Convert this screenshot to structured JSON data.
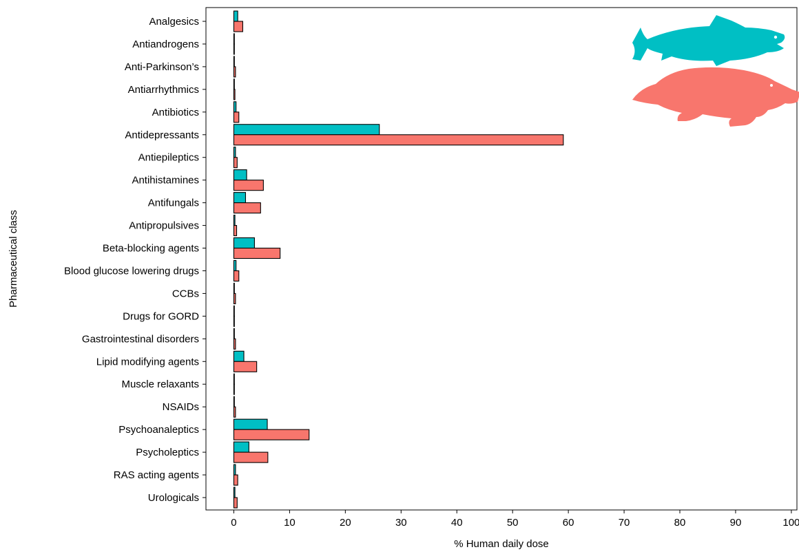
{
  "chart_data": {
    "type": "bar",
    "orientation": "horizontal",
    "xlabel": "% Human daily dose",
    "ylabel": "Pharmaceutical class",
    "xlim": [
      -5,
      101
    ],
    "x_ticks": [
      0,
      10,
      20,
      30,
      40,
      50,
      60,
      70,
      80,
      90,
      100
    ],
    "grid": false,
    "legend": "none (series shown as fish and platypus silhouettes, top-right)",
    "categories": [
      "Analgesics",
      "Antiandrogens",
      "Anti-Parkinson’s",
      "Antiarrhythmics",
      "Antibiotics",
      "Antidepressants",
      "Antiepileptics",
      "Antihistamines",
      "Antifungals",
      "Antipropulsives",
      "Beta-blocking agents",
      "Blood glucose lowering drugs",
      "CCBs",
      "Drugs for GORD",
      "Gastrointestinal disorders",
      "Lipid modifying agents",
      "Muscle relaxants",
      "NSAIDs",
      "Psychoanaleptics",
      "Psycholeptics",
      "RAS acting agents",
      "Urologicals"
    ],
    "series": [
      {
        "color": "#00bfc4",
        "icon": "fish-icon",
        "values": [
          0.7,
          0.02,
          0.1,
          0.1,
          0.4,
          26.1,
          0.3,
          2.3,
          2.1,
          0.2,
          3.7,
          0.4,
          0.1,
          0.02,
          0.1,
          1.8,
          0.02,
          0.1,
          6.0,
          2.7,
          0.3,
          0.2
        ]
      },
      {
        "color": "#f8766d",
        "icon": "platypus-icon",
        "values": [
          1.6,
          0.05,
          0.3,
          0.2,
          0.9,
          59.1,
          0.6,
          5.3,
          4.8,
          0.5,
          8.3,
          0.9,
          0.3,
          0.05,
          0.3,
          4.1,
          0.05,
          0.3,
          13.5,
          6.1,
          0.7,
          0.6
        ]
      }
    ]
  }
}
